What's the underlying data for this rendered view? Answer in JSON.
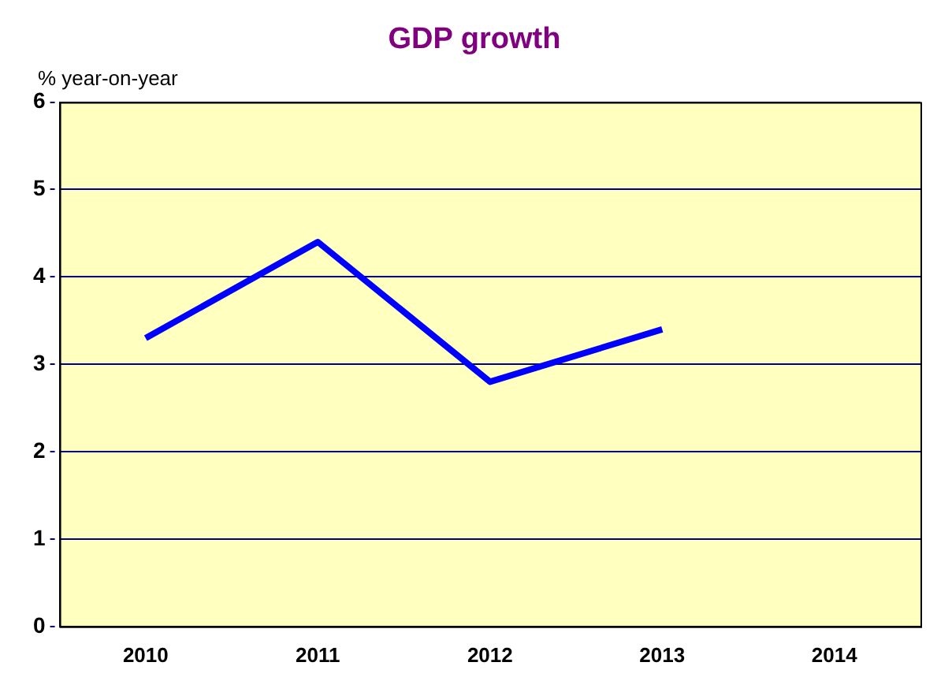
{
  "chart_data": {
    "type": "line",
    "title": "GDP growth",
    "ylabel": "% year-on-year",
    "categories": [
      "2010",
      "2011",
      "2012",
      "2013",
      "2014"
    ],
    "series": [
      {
        "color": "#0000ff",
        "values": [
          3.3,
          4.4,
          2.8,
          3.4,
          null
        ]
      }
    ],
    "ylim": [
      0,
      6
    ],
    "yticks": [
      0,
      1,
      2,
      3,
      4,
      5,
      6
    ],
    "grid": "y",
    "legend": false,
    "marker": "none",
    "line_style": "solid"
  }
}
